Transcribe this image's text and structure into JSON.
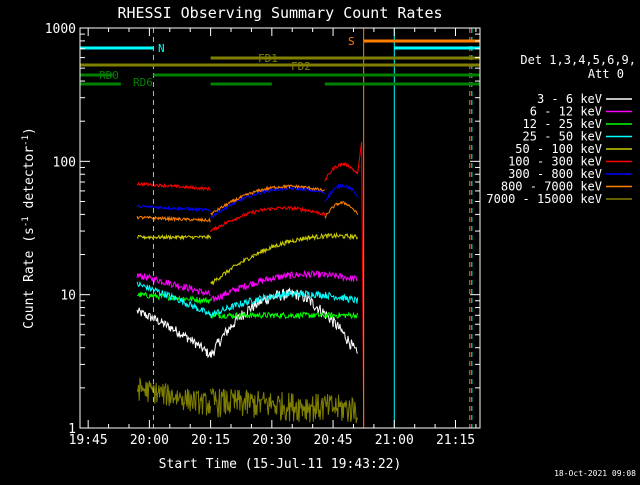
{
  "chart_data": {
    "type": "line",
    "title": "RHESSI Observing Summary Count Rates",
    "xlabel": "Start Time (15-Jul-11 19:43:22)",
    "ylabel_main": "Count Rate (s",
    "ylabel_sup1": "-1",
    "ylabel_mid": " detector",
    "ylabel_sup2": "-1",
    "ylabel_end": ")",
    "footer_date": "18-Oct-2021 09:08",
    "y_scale": "log",
    "ylim": [
      1,
      1000
    ],
    "xlim_minutes": [
      -2,
      96
    ],
    "x_ticks": [
      {
        "label": "19:45",
        "min": 0
      },
      {
        "label": "20:00",
        "min": 15
      },
      {
        "label": "20:15",
        "min": 30
      },
      {
        "label": "20:30",
        "min": 45
      },
      {
        "label": "20:45",
        "min": 60
      },
      {
        "label": "21:00",
        "min": 75
      },
      {
        "label": "21:15",
        "min": 90
      }
    ],
    "y_ticks": [
      {
        "label": "1",
        "value": 1
      },
      {
        "label": "10",
        "value": 10
      },
      {
        "label": "100",
        "value": 100
      },
      {
        "label": "1000",
        "value": 1000
      }
    ],
    "legend_header": [
      "Det 1,3,4,5,6,9,",
      "Att 0"
    ],
    "legend_position": "right",
    "series": [
      {
        "name": "3 - 6 keV",
        "color": "#ffffff",
        "segments": [
          {
            "t0": 12,
            "t1": 30,
            "v": [
              7.5,
              3.5
            ],
            "noise": 0.08
          },
          {
            "t0": 30,
            "t1": 52,
            "v": [
              3.5,
              10
            ],
            "noise": 0.1
          },
          {
            "t0": 52,
            "t1": 66,
            "v": [
              10,
              3.5
            ],
            "noise": 0.1
          }
        ]
      },
      {
        "name": "6 - 12 keV",
        "color": "#ff00ff",
        "segments": [
          {
            "t0": 12,
            "t1": 30,
            "v": [
              14,
              10
            ],
            "noise": 0.06
          },
          {
            "t0": 30,
            "t1": 66,
            "v": [
              9,
              13
            ],
            "noise": 0.06
          }
        ]
      },
      {
        "name": "12 - 25 keV",
        "color": "#00ff00",
        "segments": [
          {
            "t0": 12,
            "t1": 30,
            "v": [
              10,
              9
            ],
            "noise": 0.05
          },
          {
            "t0": 30,
            "t1": 66,
            "v": [
              7,
              7
            ],
            "noise": 0.05
          }
        ]
      },
      {
        "name": "25 - 50 keV",
        "color": "#00ffff",
        "segments": [
          {
            "t0": 12,
            "t1": 30,
            "v": [
              12,
              7
            ],
            "noise": 0.06
          },
          {
            "t0": 30,
            "t1": 66,
            "v": [
              7,
              9
            ],
            "noise": 0.06
          }
        ]
      },
      {
        "name": "50 - 100 keV",
        "color": "#cccc00",
        "segments": [
          {
            "t0": 12,
            "t1": 30,
            "v": [
              27,
              27
            ],
            "noise": 0.03
          },
          {
            "t0": 30,
            "t1": 66,
            "v": [
              12,
              27
            ],
            "noise": 0.04
          }
        ]
      },
      {
        "name": "100 - 300 keV",
        "color": "#ff0000",
        "segments": [
          {
            "t0": 12,
            "t1": 30,
            "v": [
              68,
              62
            ],
            "noise": 0.025
          },
          {
            "t0": 30,
            "t1": 58,
            "v": [
              30,
              40
            ],
            "noise": 0.03
          },
          {
            "t0": 58,
            "t1": 66,
            "v": [
              72,
              80
            ],
            "noise": 0.03
          }
        ]
      },
      {
        "name": "300 - 800 keV",
        "color": "#0000ff",
        "segments": [
          {
            "t0": 12,
            "t1": 30,
            "v": [
              46,
              43
            ],
            "noise": 0.025
          },
          {
            "t0": 30,
            "t1": 58,
            "v": [
              38,
              58
            ],
            "noise": 0.025
          },
          {
            "t0": 58,
            "t1": 66,
            "v": [
              50,
              55
            ],
            "noise": 0.025
          }
        ]
      },
      {
        "name": "800 - 7000 keV",
        "color": "#ff8000",
        "segments": [
          {
            "t0": 12,
            "t1": 30,
            "v": [
              38,
              36
            ],
            "noise": 0.025
          },
          {
            "t0": 30,
            "t1": 58,
            "v": [
              40,
              60
            ],
            "noise": 0.025
          },
          {
            "t0": 58,
            "t1": 66,
            "v": [
              38,
              40
            ],
            "noise": 0.025
          }
        ]
      },
      {
        "name": "7000 - 15000 keV",
        "color": "#808000",
        "segments": [
          {
            "t0": 12,
            "t1": 30,
            "v": [
              2,
              1.5
            ],
            "noise": 0.2
          },
          {
            "t0": 30,
            "t1": 66,
            "v": [
              1.6,
              1.4
            ],
            "noise": 0.25
          }
        ]
      }
    ],
    "annotations": [
      {
        "label": "N",
        "color": "#00ffff"
      },
      {
        "label": "S",
        "color": "#ff8000"
      },
      {
        "label": "FD1",
        "color": "#808000"
      },
      {
        "label": "FD2",
        "color": "#808000"
      },
      {
        "label": "RD0",
        "color": "#008000"
      },
      {
        "label": "RD6",
        "color": "#008000"
      }
    ]
  }
}
